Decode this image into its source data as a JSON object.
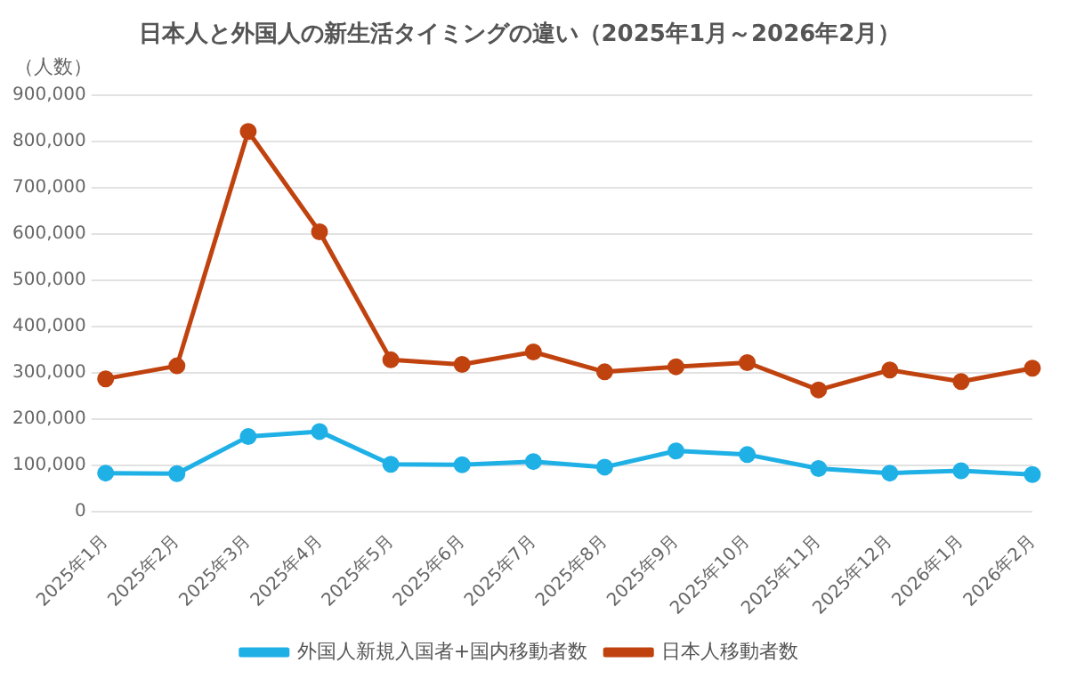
{
  "chart_data": {
    "type": "line",
    "title": "日本人と外国人の新生活タイミングの違い（2025年1月～2026年2月）",
    "ylabel": "（人数）",
    "categories": [
      "2025年1月",
      "2025年2月",
      "2025年3月",
      "2025年4月",
      "2025年5月",
      "2025年6月",
      "2025年7月",
      "2025年8月",
      "2025年9月",
      "2025年10月",
      "2025年11月",
      "2025年12月",
      "2026年1月",
      "2026年2月"
    ],
    "series": [
      {
        "name": "外国人新規入国者+国内移動者数",
        "color": "#1fb0e6",
        "values": [
          83000,
          82000,
          162000,
          173000,
          102000,
          101000,
          108000,
          96000,
          131000,
          123000,
          93000,
          83000,
          88000,
          80000
        ]
      },
      {
        "name": "日本人移動者数",
        "color": "#c0430f",
        "values": [
          287000,
          315000,
          822000,
          605000,
          328000,
          318000,
          345000,
          302000,
          313000,
          322000,
          263000,
          306000,
          281000,
          310000
        ]
      }
    ],
    "ylim": [
      0,
      900000
    ],
    "yticks": [
      0,
      {
        "value": 100000,
        "label": "100,000"
      },
      {
        "value": 200000,
        "label": "200,000"
      },
      {
        "value": 300000,
        "label": "300,000"
      },
      {
        "value": 400000,
        "label": "400,000"
      },
      {
        "value": 500000,
        "label": "500,000"
      },
      {
        "value": 600000,
        "label": "600,000"
      },
      {
        "value": 700000,
        "label": "700,000"
      },
      {
        "value": 800000,
        "label": "800,000"
      },
      {
        "value": 900000,
        "label": "900,000"
      }
    ],
    "grid": "y",
    "legend": "bottom",
    "marker": "circle",
    "line_style": "solid"
  }
}
